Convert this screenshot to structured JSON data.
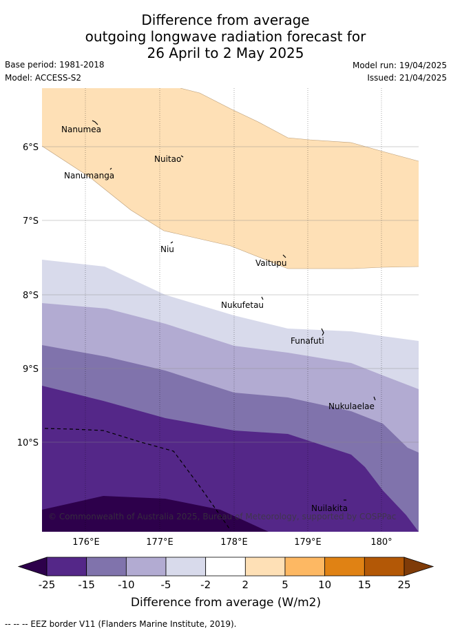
{
  "title": {
    "line1": "Difference from average",
    "line2": "outgoing longwave radiation forecast for",
    "line3": "26 April to 2 May 2025"
  },
  "meta": {
    "base_period": "Base period: 1981-2018",
    "model": "Model: ACCESS-S2",
    "model_run": "Model run: 19/04/2025",
    "issued": "Issued: 21/04/2025"
  },
  "map": {
    "lat_ticks": [
      "6°S",
      "7°S",
      "8°S",
      "9°S",
      "10°S"
    ],
    "lon_ticks": [
      "176°E",
      "177°E",
      "178°E",
      "179°E",
      "180°"
    ],
    "places": [
      {
        "name": "Nanumea"
      },
      {
        "name": "Nuitao"
      },
      {
        "name": "Nanumanga"
      },
      {
        "name": "Niu"
      },
      {
        "name": "Vaitupu"
      },
      {
        "name": "Nukufetau"
      },
      {
        "name": "Funafuti"
      },
      {
        "name": "Nukulaelae"
      },
      {
        "name": "Nuilakita"
      }
    ],
    "copyright": "© Commonwealth of Australia 2025, Bureau of Meteorology, supported by COSPPac"
  },
  "colorbar": {
    "ticks": [
      "-25",
      "-15",
      "-10",
      "-5",
      "-2",
      "2",
      "5",
      "10",
      "15",
      "25"
    ],
    "colors": [
      "#2d004b",
      "#542788",
      "#8073ac",
      "#b2abd2",
      "#d8daeb",
      "#ffffff",
      "#fee0b6",
      "#fdb863",
      "#e08214",
      "#b35806",
      "#7f3b08"
    ],
    "label": "Difference from average (W/m2)"
  },
  "footer": {
    "eez": "--  --  -- EEZ border V11 (Flanders Marine Institute, 2019)."
  }
}
